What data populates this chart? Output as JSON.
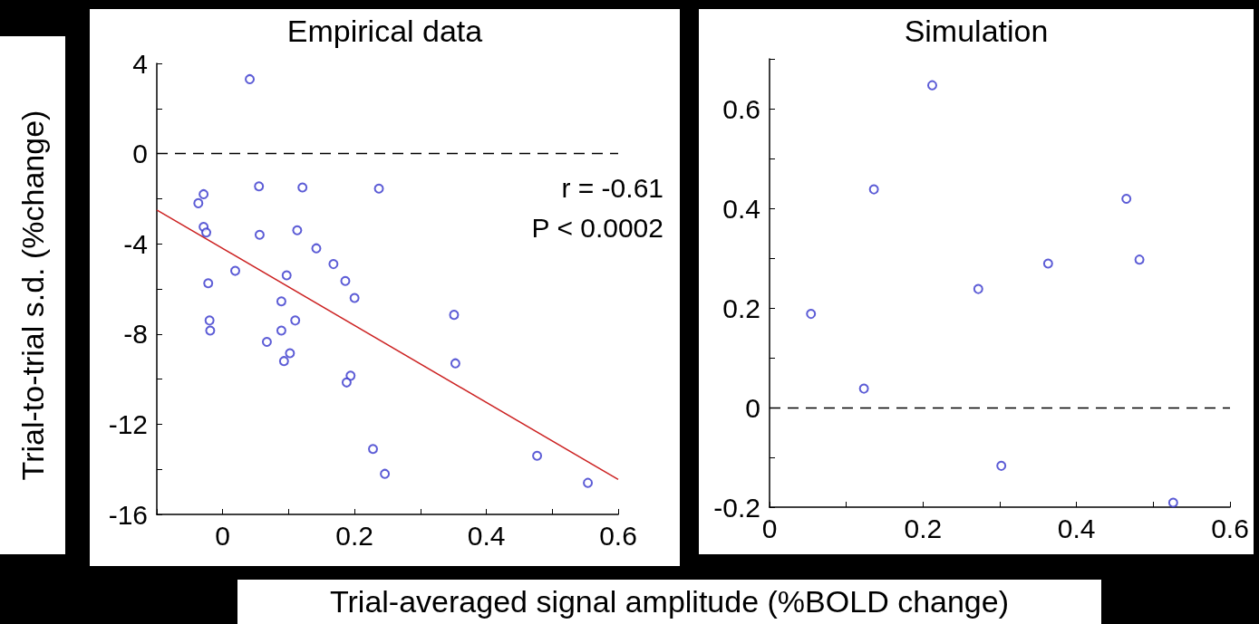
{
  "chart_data": [
    {
      "type": "scatter",
      "title": "Empirical data",
      "xlabel": "Trial-averaged signal amplitude (%BOLD change)",
      "ylabel": "Trial-to-trial s.d. (%change)",
      "annotations": [
        "r = -0.61",
        "P < 0.0002"
      ],
      "xlim": [
        -0.1,
        0.6
      ],
      "xticks": [
        {
          "value": -0.1,
          "label": null
        },
        0,
        {
          "value": 0.1,
          "label": null
        },
        0.2,
        {
          "value": 0.3,
          "label": null
        },
        0.4,
        {
          "value": 0.5,
          "label": null
        },
        0.6
      ],
      "ylim": [
        -16,
        4
      ],
      "yticks": [
        -16,
        {
          "value": -14,
          "label": null
        },
        -12,
        {
          "value": -10,
          "label": null
        },
        -8,
        {
          "value": -6,
          "label": null
        },
        -4,
        {
          "value": -2,
          "label": null
        },
        0,
        {
          "value": 2,
          "label": null
        },
        4
      ],
      "grid": false,
      "marker": "circle",
      "ref_lines": [
        {
          "axis": "y",
          "value": 0,
          "color": "#000000",
          "line_style": "dashed"
        }
      ],
      "series": [
        {
          "color": "#3333cc",
          "x": [
            0.041,
            -0.037,
            -0.029,
            -0.029,
            -0.025,
            -0.022,
            -0.02,
            -0.019,
            0.019,
            0.055,
            0.056,
            0.067,
            0.089,
            0.089,
            0.093,
            0.097,
            0.102,
            0.11,
            0.113,
            0.121,
            0.142,
            0.168,
            0.186,
            0.194,
            0.188,
            0.2,
            0.237,
            0.228,
            0.246,
            0.351,
            0.353,
            0.477,
            0.554
          ],
          "values": [
            3.3,
            -2.2,
            -1.8,
            -3.25,
            -3.5,
            -5.75,
            -7.4,
            -7.85,
            -5.2,
            -1.45,
            -3.6,
            -8.35,
            -6.55,
            -7.85,
            -9.2,
            -5.4,
            -8.85,
            -7.4,
            -3.4,
            -1.5,
            -4.2,
            -4.9,
            -5.65,
            -9.85,
            -10.15,
            -6.4,
            -1.55,
            -13.1,
            -14.2,
            -7.15,
            -9.3,
            -13.4,
            -14.6
          ]
        },
        {
          "type": "line",
          "color": "#cc2222",
          "marker": "none",
          "x": [
            -0.1,
            0.6
          ],
          "values": [
            -2.5,
            -14.45
          ]
        }
      ]
    },
    {
      "type": "scatter",
      "title": "Simulation",
      "xlim": [
        0,
        0.6
      ],
      "xticks": [
        0,
        {
          "value": 0.1,
          "label": null
        },
        0.2,
        {
          "value": 0.3,
          "label": null
        },
        0.4,
        {
          "value": 0.5,
          "label": null
        },
        0.6
      ],
      "ylim": [
        -0.2,
        0.7
      ],
      "yticks": [
        -0.2,
        {
          "value": -0.1,
          "label": null
        },
        0,
        {
          "value": 0.1,
          "label": null
        },
        0.2,
        {
          "value": 0.3,
          "label": null
        },
        0.4,
        {
          "value": 0.5,
          "label": null
        },
        0.6,
        {
          "value": 0.7,
          "label": null
        }
      ],
      "grid": false,
      "marker": "circle",
      "ref_lines": [
        {
          "axis": "y",
          "value": 0,
          "color": "#000000",
          "line_style": "dashed"
        }
      ],
      "series": [
        {
          "color": "#3333cc",
          "x": [
            0.054,
            0.123,
            0.136,
            0.212,
            0.272,
            0.302,
            0.363,
            0.465,
            0.482,
            0.526
          ],
          "values": [
            0.188,
            0.038,
            0.438,
            0.647,
            0.238,
            -0.117,
            0.289,
            0.419,
            0.297,
            -0.191
          ]
        }
      ]
    }
  ]
}
